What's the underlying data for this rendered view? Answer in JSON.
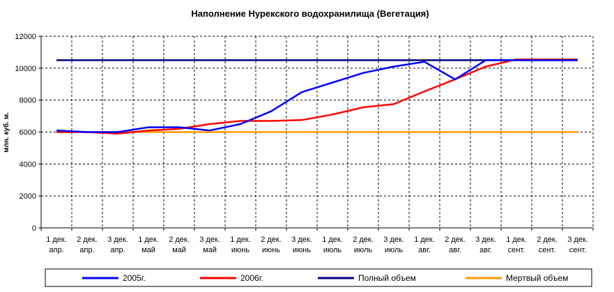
{
  "chart_data": {
    "type": "line",
    "title": "Наполнение Нурекского водохранилища (Вегетация)",
    "ylabel": "млн. куб. м.",
    "xlabel": "",
    "ylim": [
      0,
      12000
    ],
    "yticks": [
      0,
      2000,
      4000,
      6000,
      8000,
      10000,
      12000
    ],
    "grid": true,
    "legend_position": "bottom",
    "categories": [
      [
        "1 дек.",
        "апр."
      ],
      [
        "2 дек.",
        "апр."
      ],
      [
        "3 дек.",
        "апр."
      ],
      [
        "1 дек.",
        "май"
      ],
      [
        "2 дек.",
        "май"
      ],
      [
        "3 дек.",
        "май"
      ],
      [
        "1 дек.",
        "июнь"
      ],
      [
        "2 дек.",
        "июнь"
      ],
      [
        "3 дек.",
        "июнь"
      ],
      [
        "1 дек.",
        "июль"
      ],
      [
        "2 дек.",
        "июль"
      ],
      [
        "3 дек.",
        "июль"
      ],
      [
        "1 дек.",
        "авг."
      ],
      [
        "2 дек.",
        "авг."
      ],
      [
        "3 дек.",
        "авг."
      ],
      [
        "1 дек.",
        "сент."
      ],
      [
        "2 дек.",
        "сент."
      ],
      [
        "3 дек.",
        "сент."
      ]
    ],
    "series": [
      {
        "name": "2005г.",
        "color": "#0000ff",
        "values": [
          6100,
          6000,
          6000,
          6300,
          6300,
          6100,
          6500,
          7300,
          8500,
          9100,
          9700,
          10100,
          10400,
          9300,
          10500,
          10500,
          10500,
          10500
        ]
      },
      {
        "name": "2006г.",
        "color": "#ff0000",
        "values": [
          6000,
          6000,
          5900,
          6100,
          6200,
          6500,
          6700,
          6700,
          6750,
          7100,
          7550,
          7750,
          8550,
          9300,
          10100,
          10550,
          10550,
          10550
        ]
      },
      {
        "name": "Полный объем",
        "color": "#000080",
        "values": [
          10500,
          10500,
          10500,
          10500,
          10500,
          10500,
          10500,
          10500,
          10500,
          10500,
          10500,
          10500,
          10500,
          10500,
          10500,
          10500,
          10500,
          10500
        ]
      },
      {
        "name": "Мертвый объем",
        "color": "#ff9900",
        "values": [
          6000,
          6000,
          6000,
          6000,
          6000,
          6000,
          6000,
          6000,
          6000,
          6000,
          6000,
          6000,
          6000,
          6000,
          6000,
          6000,
          6000,
          6000
        ]
      }
    ]
  }
}
